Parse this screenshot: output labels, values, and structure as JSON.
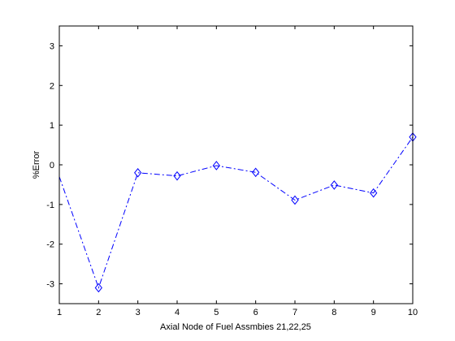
{
  "chart_data": {
    "type": "line",
    "title": "",
    "xlabel": "Axial Node of Fuel Assmbies 21,22,25",
    "ylabel": "%Error",
    "xlim": [
      1,
      10
    ],
    "ylim": [
      -3.5,
      3.5
    ],
    "xticks": [
      "1",
      "2",
      "3",
      "4",
      "5",
      "6",
      "7",
      "8",
      "9",
      "10"
    ],
    "yticks": [
      "-3",
      "-2",
      "-1",
      "0",
      "1",
      "2",
      "3"
    ],
    "grid": false,
    "series": [
      {
        "x": [
          1,
          2,
          3,
          4,
          5,
          6,
          7,
          8,
          9,
          10
        ],
        "y": [
          -0.3,
          -3.1,
          -0.2,
          -0.28,
          -0.02,
          -0.19,
          -0.89,
          -0.51,
          -0.71,
          0.7
        ],
        "color": "#0000ff",
        "line_style": "dash-dot",
        "marker": "diamond",
        "markers_on": [
          false,
          true,
          true,
          true,
          true,
          true,
          true,
          true,
          true,
          true
        ]
      }
    ]
  }
}
